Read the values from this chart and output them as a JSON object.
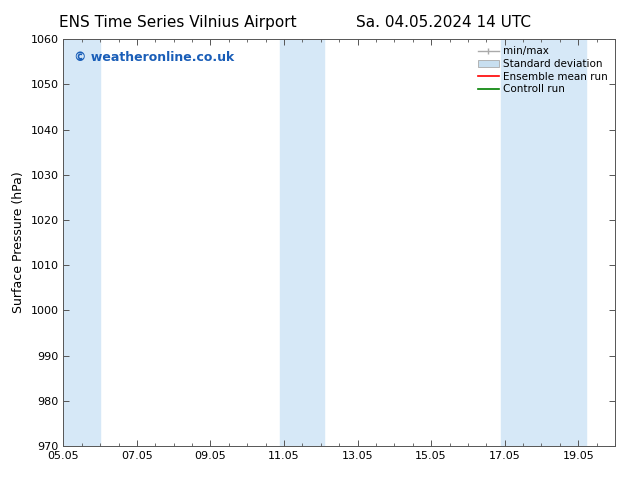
{
  "title_left": "ENS Time Series Vilnius Airport",
  "title_right": "Sa. 04.05.2024 14 UTC",
  "ylabel": "Surface Pressure (hPa)",
  "ylim": [
    970,
    1060
  ],
  "yticks": [
    970,
    980,
    990,
    1000,
    1010,
    1020,
    1030,
    1040,
    1050,
    1060
  ],
  "xtick_labels": [
    "05.05",
    "07.05",
    "09.05",
    "11.05",
    "13.05",
    "15.05",
    "17.05",
    "19.05"
  ],
  "xtick_positions": [
    0,
    2,
    4,
    6,
    8,
    10,
    12,
    14
  ],
  "xlim": [
    0,
    15
  ],
  "shaded_bands": [
    {
      "x_start": -0.1,
      "x_end": 1.0,
      "color": "#d6e8f7"
    },
    {
      "x_start": 5.9,
      "x_end": 7.1,
      "color": "#d6e8f7"
    },
    {
      "x_start": 11.9,
      "x_end": 14.2,
      "color": "#d6e8f7"
    }
  ],
  "watermark": "© weatheronline.co.uk",
  "watermark_color": "#1a5eb8",
  "bg_color": "#ffffff",
  "plot_bg_color": "#ffffff",
  "legend_items": [
    {
      "label": "min/max",
      "color": "#aaaaaa",
      "type": "errorbar"
    },
    {
      "label": "Standard deviation",
      "color": "#c8dff0",
      "type": "bar"
    },
    {
      "label": "Ensemble mean run",
      "color": "#ff0000",
      "type": "line"
    },
    {
      "label": "Controll run",
      "color": "#008000",
      "type": "line"
    }
  ],
  "title_fontsize": 11,
  "axis_fontsize": 9,
  "tick_fontsize": 8,
  "watermark_fontsize": 9,
  "legend_fontsize": 7.5
}
